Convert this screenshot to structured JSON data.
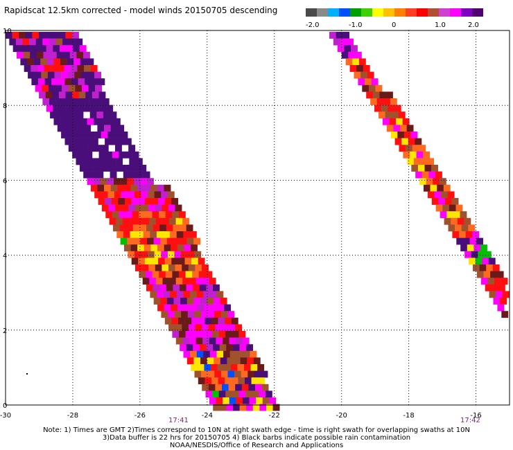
{
  "title": "Rapidscat 12.5km corrected - model winds 20150705 descending",
  "colorbar": {
    "colors": [
      "#4a4a4a",
      "#8a8a8a",
      "#00b0ff",
      "#0050ff",
      "#00a000",
      "#40d000",
      "#ffff00",
      "#ffc000",
      "#ff8000",
      "#ff4020",
      "#ff0000",
      "#b05030",
      "#d040d0",
      "#ff00ff",
      "#8000c0",
      "#500070"
    ],
    "labels": [
      "-2.0",
      "-1.0",
      "0",
      "1.0",
      "2.0"
    ]
  },
  "map": {
    "x_ticks": [
      "-30",
      "-28",
      "-26",
      "-24",
      "-22",
      "-20",
      "-18",
      "-16"
    ],
    "y_ticks": [
      "0",
      "2",
      "4",
      "6",
      "8",
      "10"
    ],
    "lon_range": [
      -30,
      -15
    ],
    "lat_range": [
      0,
      10
    ],
    "grid": "dotted"
  },
  "times": [
    "17:41",
    "17:42"
  ],
  "notes": [
    "Note: 1) Times are GMT 2)Times correspond to 10N at right swath edge - time is right swath for overlapping swaths at 10N",
    "3)Data buffer is 22 hrs for 20150705 4) Black barbs indicate possible rain contamination",
    "NOAA/NESDIS/Office of Research and Applications"
  ]
}
